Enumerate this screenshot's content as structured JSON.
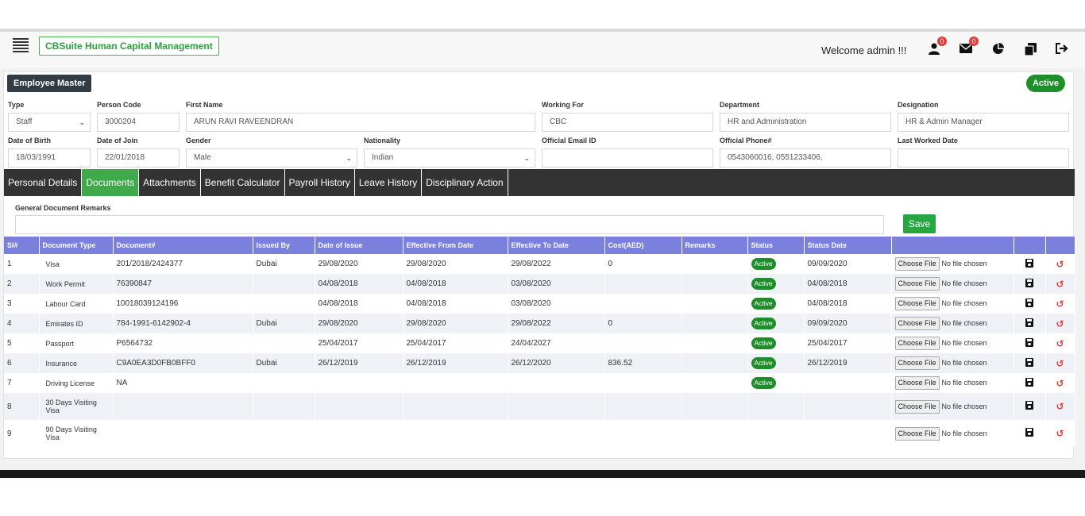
{
  "header": {
    "brand": "CBSuite Human Capital Management",
    "welcome": "Welcome admin !!!",
    "user_badge": "0",
    "mail_badge": "0"
  },
  "page": {
    "title": "Employee Master",
    "status": "Active"
  },
  "fields": {
    "type": {
      "label": "Type",
      "value": "Staff"
    },
    "person_code": {
      "label": "Person Code",
      "value": "3000204"
    },
    "first_name": {
      "label": "First Name",
      "value": "ARUN RAVI RAVEENDRAN"
    },
    "working_for": {
      "label": "Working For",
      "value": "CBC"
    },
    "department": {
      "label": "Department",
      "value": "HR and Administration"
    },
    "designation": {
      "label": "Designation",
      "value": "HR & Admin Manager"
    },
    "dob": {
      "label": "Date of Birth",
      "value": "18/03/1991"
    },
    "doj": {
      "label": "Date of Join",
      "value": "22/01/2018"
    },
    "gender": {
      "label": "Gender",
      "value": "Male"
    },
    "nationality": {
      "label": "Nationality",
      "value": "Indian"
    },
    "email": {
      "label": "Official Email ID",
      "value": ""
    },
    "phone": {
      "label": "Official Phone#",
      "value": "0543060016, 0551233406,"
    },
    "last_worked": {
      "label": "Last Worked Date",
      "value": ""
    }
  },
  "tabs": [
    {
      "label": "Personal Details",
      "active": false
    },
    {
      "label": "Documents",
      "active": true
    },
    {
      "label": "Attachments",
      "active": false
    },
    {
      "label": "Benefit Calculator",
      "active": false
    },
    {
      "label": "Payroll History",
      "active": false
    },
    {
      "label": "Leave History",
      "active": false
    },
    {
      "label": "Disciplinary Action",
      "active": false
    }
  ],
  "documents": {
    "remarks_label": "General Document Remarks",
    "remarks_value": "",
    "save_label": "Save",
    "columns": [
      "Sl#",
      "Document Type",
      "Document#",
      "Issued By",
      "Date of Issue",
      "Effective From Date",
      "Effective To Date",
      "Cost(AED)",
      "Remarks",
      "Status",
      "Status Date",
      "",
      "",
      ""
    ],
    "file_button": "Choose File",
    "file_status": "No file chosen",
    "rows": [
      {
        "sl": "1",
        "type": "Visa",
        "number": "201/2018/2424377",
        "issued_by": "Dubai",
        "issue": "29/08/2020",
        "from": "29/08/2020",
        "to": "29/08/2022",
        "cost": "0",
        "remarks": "",
        "status": "Active",
        "status_date": "09/09/2020"
      },
      {
        "sl": "2",
        "type": "Work Permit",
        "number": "76390847",
        "issued_by": "",
        "issue": "04/08/2018",
        "from": "04/08/2018",
        "to": "03/08/2020",
        "cost": "",
        "remarks": "",
        "status": "Active",
        "status_date": "04/08/2018"
      },
      {
        "sl": "3",
        "type": "Labour Card",
        "number": "10018039124196",
        "issued_by": "",
        "issue": "04/08/2018",
        "from": "04/08/2018",
        "to": "03/08/2020",
        "cost": "",
        "remarks": "",
        "status": "Active",
        "status_date": "04/08/2018"
      },
      {
        "sl": "4",
        "type": "Emirates ID",
        "number": "784-1991-6142902-4",
        "issued_by": "Dubai",
        "issue": "29/08/2020",
        "from": "29/08/2020",
        "to": "29/08/2022",
        "cost": "0",
        "remarks": "",
        "status": "Active",
        "status_date": "09/09/2020"
      },
      {
        "sl": "5",
        "type": "Passport",
        "number": "P6564732",
        "issued_by": "",
        "issue": "25/04/2017",
        "from": "25/04/2017",
        "to": "24/04/2027",
        "cost": "",
        "remarks": "",
        "status": "Active",
        "status_date": "25/04/2017"
      },
      {
        "sl": "6",
        "type": "Insurance",
        "number": "C9A0EA3D0FB0BFF0",
        "issued_by": "Dubai",
        "issue": "26/12/2019",
        "from": "26/12/2019",
        "to": "26/12/2020",
        "cost": "836.52",
        "remarks": "",
        "status": "Active",
        "status_date": "26/12/2019"
      },
      {
        "sl": "7",
        "type": "Driving License",
        "number": "NA",
        "issued_by": "",
        "issue": "",
        "from": "",
        "to": "",
        "cost": "",
        "remarks": "",
        "status": "Active",
        "status_date": ""
      },
      {
        "sl": "8",
        "type": "30 Days Visiting Visa",
        "number": "",
        "issued_by": "",
        "issue": "",
        "from": "",
        "to": "",
        "cost": "",
        "remarks": "",
        "status": "",
        "status_date": ""
      },
      {
        "sl": "9",
        "type": "90 Days Visiting Visa",
        "number": "",
        "issued_by": "",
        "issue": "",
        "from": "",
        "to": "",
        "cost": "",
        "remarks": "",
        "status": "",
        "status_date": ""
      }
    ]
  }
}
